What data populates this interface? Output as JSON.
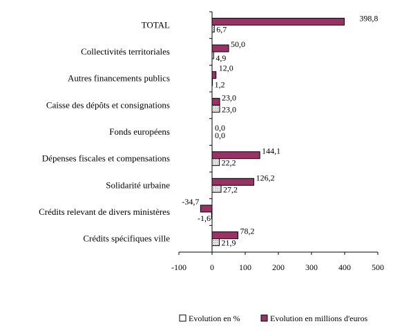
{
  "chart_data": {
    "type": "bar",
    "orientation": "horizontal",
    "categories": [
      "TOTAL",
      "Collectivités territoriales",
      "Autres financements publics",
      "Caisse des dépôts et consignations",
      "Fonds européens",
      "Dépenses fiscales et compensations",
      "Solidarité urbaine",
      "Crédits relevant de divers ministères",
      "Crédits spécifiques ville"
    ],
    "series": [
      {
        "name": "Evolution en millions d'euros",
        "color": "#993366",
        "values": [
          398.8,
          50.0,
          12.0,
          23.0,
          0.0,
          144.1,
          126.2,
          -34.7,
          78.2
        ],
        "labels": [
          "398,8",
          "50,0",
          "12,0",
          "23,0",
          "0,0",
          "144,1",
          "126,2",
          "-34,7",
          "78,2"
        ]
      },
      {
        "name": "Evolution en %",
        "color": "#ffffff",
        "pattern": "dotted",
        "values": [
          6.7,
          4.9,
          1.2,
          23.0,
          0.0,
          22.2,
          27.2,
          -1.6,
          21.9
        ],
        "labels": [
          "6,7",
          "4,9",
          "1,2",
          "23,0",
          "0,0",
          "22,2",
          "27,2",
          "-1,6",
          "21,9"
        ]
      }
    ],
    "xlim": [
      -100,
      500
    ],
    "xticks": [
      "-100",
      "0",
      "100",
      "200",
      "300",
      "400",
      "500"
    ],
    "title": "",
    "xlabel": "",
    "ylabel": "",
    "grid": false,
    "legend_position": "bottom-right"
  }
}
